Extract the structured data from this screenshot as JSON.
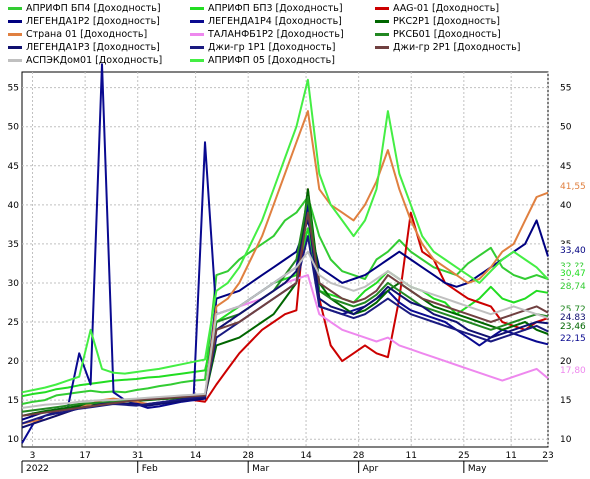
{
  "chart_data": {
    "type": "line",
    "ylim": [
      9,
      57
    ],
    "yticks": [
      10,
      15,
      20,
      25,
      30,
      35,
      40,
      45,
      50,
      55
    ],
    "x_axis": {
      "day_ticks": [
        "3",
        "17",
        "31",
        "14",
        "28",
        "14",
        "28",
        "11",
        "25",
        "11",
        "23"
      ],
      "month_labels": [
        "2022",
        "Feb",
        "Mar",
        "Apr",
        "May"
      ]
    },
    "grid": true,
    "legend_position": "top",
    "series": [
      {
        "name": "АПРИФП БП4 [Доходность]",
        "color": "#33cc33",
        "values": [
          14.5,
          14.8,
          15.0,
          15.6,
          15.8,
          16.0,
          16.2,
          16.0,
          16.1,
          16.0,
          16.3,
          16.5,
          16.8,
          17.0,
          17.3,
          17.5,
          17.6,
          31.0,
          31.5,
          33.0,
          34.0,
          35.0,
          36.0,
          38.0,
          39.0,
          41.0,
          36.0,
          33.0,
          31.5,
          31.0,
          30.5,
          33.0,
          34.0,
          35.5,
          34.0,
          33.0,
          32.0,
          31.5,
          31.0,
          32.5,
          33.5,
          34.5,
          32.0,
          31.0,
          30.5,
          31.0,
          30.5
        ]
      },
      {
        "name": "АПРИФП БП3 [Доходность]",
        "color": "#22dd22",
        "values": [
          15.5,
          15.8,
          16.0,
          16.4,
          16.6,
          16.9,
          17.1,
          17.3,
          17.5,
          17.6,
          17.7,
          17.9,
          18.0,
          18.2,
          18.4,
          18.6,
          18.8,
          25.0,
          26.0,
          27.0,
          28.0,
          29.0,
          30.0,
          30.5,
          31.0,
          37.0,
          29.0,
          28.5,
          28.0,
          27.5,
          29.0,
          30.0,
          31.5,
          30.5,
          29.5,
          29.0,
          28.0,
          27.5,
          26.0,
          27.0,
          28.0,
          29.5,
          28.0,
          27.5,
          28.0,
          29.0,
          28.74
        ]
      },
      {
        "name": "AAG-01 [Доходность]",
        "color": "#cc0000",
        "values": [
          null,
          null,
          null,
          null,
          null,
          null,
          null,
          null,
          null,
          null,
          null,
          null,
          null,
          null,
          null,
          15.0,
          14.8,
          17.0,
          19.0,
          21.0,
          22.5,
          24.0,
          25.0,
          26.0,
          26.5,
          42.0,
          28.0,
          22.0,
          20.0,
          21.0,
          22.0,
          21.0,
          20.5,
          28.0,
          39.0,
          34.0,
          33.0,
          30.0,
          29.0,
          28.0,
          27.5,
          27.0,
          25.0,
          24.5,
          24.0,
          25.0,
          25.5
        ]
      },
      {
        "name": "ЛЕГЕНДА1Р2 [Доходность]",
        "color": "#000080",
        "values": [
          12.5,
          13.0,
          13.5,
          13.8,
          14.0,
          14.2,
          14.5,
          14.5,
          14.6,
          14.5,
          14.6,
          14.5,
          14.7,
          14.8,
          15.0,
          15.0,
          15.2,
          28.0,
          28.5,
          29.0,
          30.0,
          31.0,
          32.0,
          33.0,
          34.0,
          38.0,
          32.0,
          31.0,
          30.0,
          30.5,
          31.0,
          32.0,
          33.0,
          34.0,
          33.0,
          32.0,
          31.0,
          30.0,
          29.5,
          30.0,
          31.0,
          32.0,
          33.0,
          34.0,
          35.0,
          38.0,
          33.4
        ]
      },
      {
        "name": "ЛЕГЕНДА1Р4 [Доходность]",
        "color": "#0a0a90",
        "values": [
          9.5,
          12.0,
          13.0,
          13.5,
          14.0,
          21.0,
          17.0,
          58.0,
          16.0,
          15.0,
          14.5,
          14.0,
          14.2,
          14.5,
          14.8,
          15.0,
          48.0,
          26.0,
          26.5,
          27.0,
          28.0,
          29.0,
          30.0,
          31.0,
          32.0,
          40.0,
          27.0,
          26.5,
          26.0,
          26.5,
          27.0,
          28.0,
          29.0,
          27.5,
          26.5,
          26.0,
          25.5,
          25.0,
          24.0,
          23.0,
          22.0,
          23.0,
          24.0,
          23.5,
          23.0,
          22.5,
          22.15
        ]
      },
      {
        "name": "РКС2Р1 [Доходность]",
        "color": "#006600",
        "values": [
          13.0,
          13.3,
          13.6,
          13.8,
          14.0,
          14.3,
          14.5,
          14.6,
          14.7,
          14.8,
          14.9,
          15.0,
          15.1,
          15.2,
          15.3,
          15.4,
          15.5,
          22.0,
          22.5,
          23.0,
          24.0,
          25.0,
          26.0,
          28.0,
          30.0,
          42.0,
          30.0,
          28.0,
          27.0,
          26.0,
          26.5,
          27.5,
          29.0,
          30.0,
          29.0,
          28.0,
          27.0,
          26.5,
          26.0,
          25.5,
          25.0,
          24.5,
          24.0,
          24.5,
          25.0,
          24.0,
          23.46
        ]
      },
      {
        "name": "Страна 01 [Доходность]",
        "color": "#e08040",
        "values": [
          12.0,
          12.3,
          12.5,
          13.0,
          13.5,
          14.0,
          14.5,
          15.0,
          15.2,
          15.0,
          14.8,
          14.5,
          14.6,
          14.8,
          15.0,
          15.2,
          15.5,
          27.0,
          28.0,
          30.0,
          33.0,
          36.0,
          40.0,
          44.0,
          48.0,
          52.0,
          42.0,
          40.0,
          39.0,
          38.0,
          40.0,
          43.0,
          47.0,
          42.0,
          38.0,
          35.0,
          33.0,
          32.0,
          31.0,
          30.0,
          30.5,
          32.0,
          34.0,
          35.0,
          38.0,
          41.0,
          41.55
        ]
      },
      {
        "name": "ТАЛАНФБ1Р2 [Доходность]",
        "color": "#ee88ee",
        "values": [
          null,
          null,
          null,
          null,
          null,
          null,
          null,
          null,
          null,
          null,
          null,
          null,
          null,
          null,
          null,
          null,
          null,
          26.0,
          26.5,
          27.0,
          27.5,
          28.0,
          29.0,
          30.0,
          30.5,
          31.0,
          26.0,
          25.0,
          24.0,
          23.5,
          23.0,
          22.5,
          23.0,
          22.0,
          21.5,
          21.0,
          20.5,
          20.0,
          19.5,
          19.0,
          18.5,
          18.0,
          17.5,
          18.0,
          18.5,
          19.0,
          17.8
        ]
      },
      {
        "name": "РКСБ01 [Доходность]",
        "color": "#228822",
        "values": [
          13.5,
          13.7,
          13.9,
          14.1,
          14.3,
          14.5,
          14.6,
          14.7,
          14.8,
          14.9,
          15.0,
          15.1,
          15.2,
          15.3,
          15.4,
          15.5,
          15.6,
          25.0,
          25.5,
          26.0,
          27.0,
          28.0,
          29.0,
          31.0,
          33.0,
          41.0,
          29.0,
          28.0,
          27.5,
          27.0,
          27.5,
          28.5,
          30.0,
          29.0,
          28.0,
          27.0,
          26.5,
          26.0,
          25.5,
          25.0,
          24.5,
          24.0,
          24.5,
          25.0,
          25.5,
          26.0,
          25.72
        ]
      },
      {
        "name": "ЛЕГЕНДА1Р3 [Доходность]",
        "color": "#101070",
        "values": [
          11.5,
          12.0,
          12.5,
          13.0,
          13.5,
          14.0,
          14.2,
          14.5,
          14.6,
          14.5,
          14.4,
          14.3,
          14.5,
          14.7,
          14.9,
          15.1,
          15.3,
          24.0,
          25.0,
          26.0,
          27.0,
          28.0,
          29.0,
          30.0,
          31.5,
          39.0,
          28.0,
          27.0,
          26.5,
          26.0,
          27.0,
          28.0,
          29.5,
          28.5,
          27.5,
          27.0,
          26.0,
          25.5,
          25.0,
          24.0,
          23.5,
          23.0,
          23.5,
          24.0,
          24.5,
          25.0,
          24.83
        ]
      },
      {
        "name": "Джи-гр 1Р1 [Доходность]",
        "color": "#1a1a80",
        "values": [
          12.0,
          12.5,
          13.0,
          13.3,
          13.6,
          13.9,
          14.1,
          14.3,
          14.5,
          14.4,
          14.3,
          14.5,
          14.7,
          14.9,
          15.1,
          15.3,
          15.5,
          23.0,
          24.0,
          25.0,
          26.0,
          27.0,
          28.0,
          29.0,
          30.0,
          36.0,
          27.0,
          26.5,
          26.0,
          25.5,
          26.0,
          27.0,
          28.0,
          27.0,
          26.0,
          25.5,
          25.0,
          24.5,
          24.0,
          23.5,
          23.0,
          22.5,
          23.0,
          23.5,
          24.0,
          24.5,
          23.8
        ]
      },
      {
        "name": "Джи-гр 2Р1 [Доходность]",
        "color": "#704040",
        "values": [
          13.0,
          13.2,
          13.4,
          13.6,
          13.8,
          14.0,
          14.2,
          14.4,
          14.6,
          14.8,
          15.0,
          15.1,
          15.2,
          15.3,
          15.4,
          15.5,
          15.6,
          24.0,
          24.5,
          25.0,
          26.0,
          27.0,
          28.0,
          29.0,
          30.0,
          39.0,
          30.0,
          29.0,
          28.0,
          27.5,
          28.0,
          29.0,
          31.0,
          30.0,
          29.0,
          28.0,
          27.5,
          27.0,
          26.5,
          26.0,
          25.5,
          25.0,
          25.5,
          26.0,
          26.5,
          27.0,
          26.2
        ]
      },
      {
        "name": "АСПЭКДом01 [Доходность]",
        "color": "#c0c0c0",
        "values": [
          14.0,
          14.2,
          14.4,
          14.5,
          14.6,
          14.8,
          14.9,
          15.0,
          15.0,
          15.1,
          15.2,
          15.3,
          15.4,
          15.5,
          15.6,
          15.7,
          15.8,
          26.0,
          26.5,
          27.0,
          28.0,
          29.0,
          30.0,
          31.0,
          32.0,
          34.0,
          31.0,
          30.0,
          29.5,
          29.0,
          29.5,
          30.5,
          31.5,
          30.5,
          29.5,
          29.0,
          28.5,
          28.0,
          27.5,
          27.0,
          26.5,
          26.0,
          26.5,
          27.0,
          26.5,
          26.0,
          25.5
        ]
      },
      {
        "name": "АПРИФП 05 [Доходность]",
        "color": "#44ee44",
        "values": [
          16.0,
          16.3,
          16.6,
          17.0,
          17.5,
          18.0,
          24.0,
          19.0,
          18.5,
          18.4,
          18.6,
          18.8,
          19.0,
          19.3,
          19.6,
          19.9,
          20.2,
          29.0,
          30.0,
          32.0,
          35.0,
          38.0,
          42.0,
          46.0,
          50.0,
          56.0,
          44.0,
          40.0,
          38.0,
          36.0,
          38.0,
          42.0,
          52.0,
          44.0,
          40.0,
          36.0,
          34.0,
          33.0,
          32.0,
          31.0,
          30.0,
          31.5,
          33.0,
          34.0,
          33.0,
          32.0,
          30.47
        ]
      }
    ],
    "last_values": [
      "41,55",
      "33,40",
      "32,??",
      "30,47",
      "28,74",
      "25,72",
      "24,83",
      "23,46",
      "22,15",
      "17,80"
    ]
  },
  "legend_layout_rows": 4
}
